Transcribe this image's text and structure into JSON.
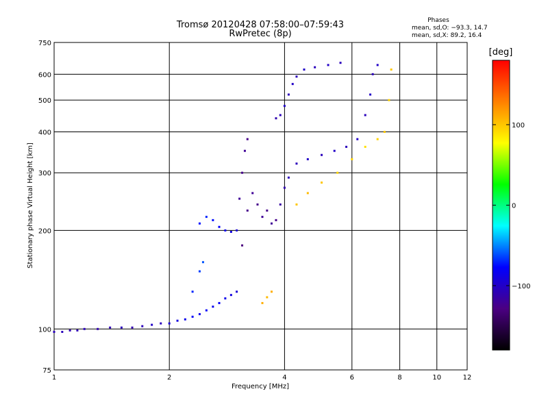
{
  "chart_data": {
    "type": "scatter",
    "title": "Tromsø 20120428 07:58:00–07:59:43",
    "subtitle": "RwPretec (8p)",
    "xlabel": "Frequency [MHz]",
    "ylabel": "Stationary phase Virtual Height [km]",
    "x_scale": "log",
    "y_scale": "log",
    "xlim": [
      1,
      12
    ],
    "ylim": [
      75,
      750
    ],
    "x_ticks": [
      1,
      2,
      4,
      6,
      8,
      10,
      12
    ],
    "x_tick_labels": [
      "1",
      "2",
      "4",
      "6",
      "8",
      "10",
      "12"
    ],
    "y_ticks": [
      75,
      100,
      200,
      300,
      400,
      500,
      600,
      750
    ],
    "y_tick_labels": [
      "75",
      "100",
      "200",
      "300",
      "400",
      "500",
      "600",
      "750"
    ],
    "grid": true,
    "phases_box": {
      "title": "Phases",
      "line1": "mean, sd,O: −93.3, 14.7",
      "line2": "mean, sd,X:  89.2, 16.4"
    },
    "colorbar": {
      "label": "[deg]",
      "range": [
        -180,
        180
      ],
      "ticks": [
        -100,
        0,
        100
      ],
      "tick_labels": [
        "−100",
        "0",
        "100"
      ],
      "colors": [
        "#000000",
        "#4b0082",
        "#0000ff",
        "#00ffff",
        "#00ff00",
        "#ffff00",
        "#ff8000",
        "#ff0000"
      ]
    },
    "series": [
      {
        "points": [
          [
            1.0,
            98,
            -105
          ],
          [
            1.05,
            98,
            -105
          ],
          [
            1.1,
            99,
            -110
          ],
          [
            1.15,
            99,
            -108
          ],
          [
            1.2,
            100,
            -105
          ],
          [
            1.3,
            100,
            -110
          ],
          [
            1.4,
            101,
            -108
          ],
          [
            1.5,
            101,
            -105
          ],
          [
            1.6,
            101,
            -110
          ],
          [
            1.7,
            102,
            -105
          ],
          [
            1.8,
            103,
            -100
          ],
          [
            1.9,
            104,
            -105
          ],
          [
            2.0,
            104,
            -95
          ],
          [
            2.1,
            106,
            -90
          ],
          [
            2.2,
            107,
            -85
          ],
          [
            2.3,
            109,
            -80
          ],
          [
            2.4,
            111,
            -85
          ],
          [
            2.5,
            114,
            -80
          ],
          [
            2.6,
            117,
            -85
          ],
          [
            2.7,
            120,
            -80
          ],
          [
            2.8,
            124,
            -85
          ],
          [
            2.9,
            127,
            -90
          ],
          [
            3.0,
            130,
            -95
          ],
          [
            2.3,
            130,
            -70
          ],
          [
            2.4,
            150,
            -65
          ],
          [
            2.45,
            160,
            -60
          ],
          [
            2.4,
            210,
            -75
          ],
          [
            2.5,
            220,
            -70
          ],
          [
            2.6,
            215,
            -75
          ],
          [
            2.7,
            205,
            -80
          ],
          [
            2.8,
            200,
            -85
          ],
          [
            2.9,
            198,
            -90
          ],
          [
            3.0,
            200,
            -95
          ],
          [
            3.05,
            250,
            -120
          ],
          [
            3.1,
            300,
            -125
          ],
          [
            3.15,
            350,
            -120
          ],
          [
            3.2,
            380,
            -125
          ],
          [
            3.1,
            180,
            -130
          ],
          [
            3.2,
            230,
            -125
          ],
          [
            3.3,
            260,
            -120
          ],
          [
            3.4,
            240,
            -125
          ],
          [
            3.5,
            220,
            -120
          ],
          [
            3.6,
            230,
            -125
          ],
          [
            3.7,
            210,
            -120
          ],
          [
            3.8,
            215,
            -125
          ],
          [
            3.9,
            240,
            -115
          ],
          [
            4.0,
            270,
            -110
          ],
          [
            4.1,
            290,
            -105
          ],
          [
            3.8,
            440,
            -110
          ],
          [
            3.9,
            450,
            -105
          ],
          [
            4.0,
            480,
            -100
          ],
          [
            4.1,
            520,
            -105
          ],
          [
            4.2,
            560,
            -100
          ],
          [
            4.3,
            590,
            -105
          ],
          [
            4.5,
            620,
            -100
          ],
          [
            4.8,
            630,
            -105
          ],
          [
            5.2,
            640,
            -100
          ],
          [
            5.6,
            650,
            -105
          ],
          [
            4.3,
            320,
            -105
          ],
          [
            4.6,
            330,
            -100
          ],
          [
            5.0,
            340,
            -105
          ],
          [
            5.4,
            350,
            -100
          ],
          [
            5.8,
            360,
            -105
          ],
          [
            6.2,
            380,
            -100
          ],
          [
            6.5,
            450,
            -105
          ],
          [
            6.7,
            520,
            -100
          ],
          [
            6.8,
            600,
            -105
          ],
          [
            7.0,
            640,
            -100
          ],
          [
            3.5,
            120,
            110
          ],
          [
            3.6,
            125,
            105
          ],
          [
            3.7,
            130,
            110
          ],
          [
            4.3,
            240,
            100
          ],
          [
            4.6,
            260,
            105
          ],
          [
            5.0,
            280,
            100
          ],
          [
            5.5,
            300,
            95
          ],
          [
            6.0,
            330,
            95
          ],
          [
            6.5,
            360,
            90
          ],
          [
            7.0,
            380,
            95
          ],
          [
            7.3,
            400,
            100
          ],
          [
            7.5,
            500,
            95
          ],
          [
            7.6,
            620,
            100
          ]
        ]
      }
    ]
  }
}
